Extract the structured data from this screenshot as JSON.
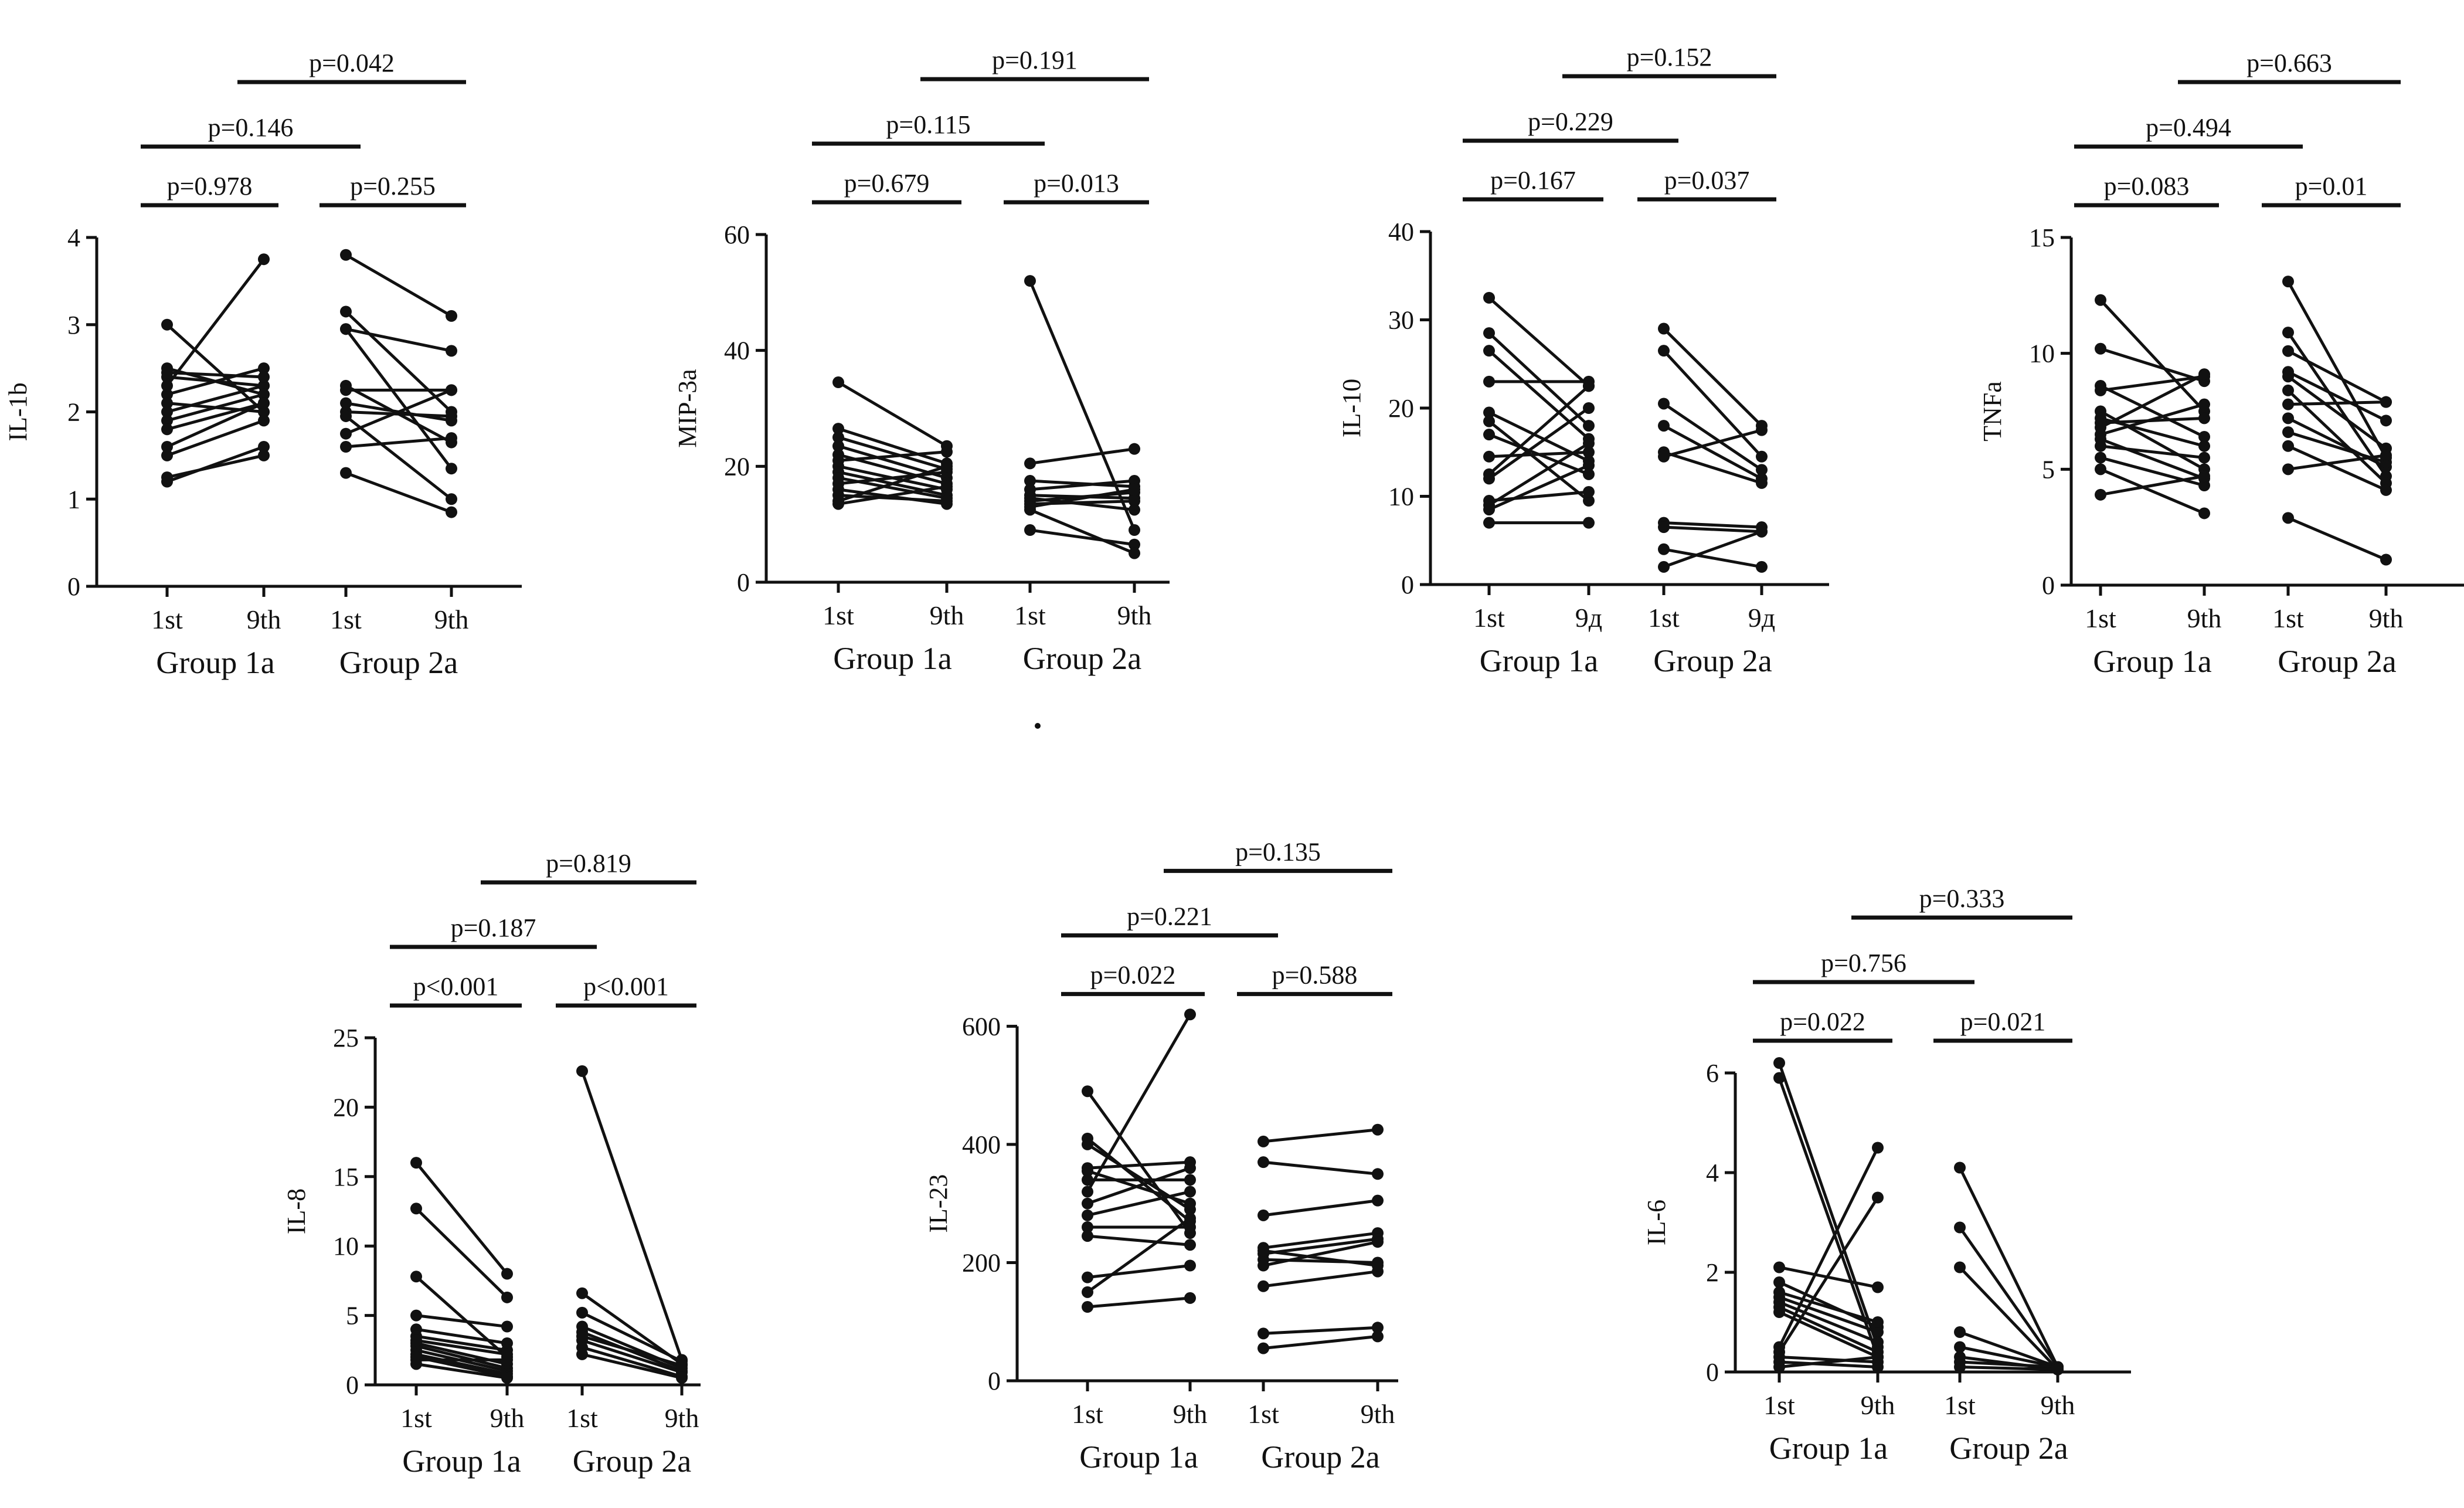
{
  "chart_data": [
    {
      "type": "line",
      "ylabel": "IL-1b",
      "ylim": [
        0,
        4
      ],
      "yticks": [
        0,
        1,
        2,
        3,
        4
      ],
      "categories": [
        "1st",
        "9th",
        "1st",
        "9th"
      ],
      "groups": [
        "Group 1a",
        "Group 2a"
      ],
      "comparisons": [
        {
          "label": "p=0.978",
          "from": 0,
          "to": 1,
          "level": 0
        },
        {
          "label": "p=0.255",
          "from": 2,
          "to": 3,
          "level": 0
        },
        {
          "label": "p=0.146",
          "from": 0,
          "to": 2,
          "level": 1
        },
        {
          "label": "p=0.042",
          "from": 1,
          "to": 3,
          "level": 2
        }
      ],
      "series": [
        {
          "group": 0,
          "pairs": [
            [
              3.0,
              2.0
            ],
            [
              2.5,
              2.2
            ],
            [
              2.4,
              2.3
            ],
            [
              2.2,
              2.5
            ],
            [
              2.1,
              2.0
            ],
            [
              2.0,
              2.3
            ],
            [
              1.9,
              2.2
            ],
            [
              1.6,
              2.1
            ],
            [
              1.5,
              1.9
            ],
            [
              1.2,
              1.6
            ],
            [
              1.25,
              1.5
            ],
            [
              2.3,
              3.75
            ],
            [
              2.45,
              2.4
            ],
            [
              1.8,
              2.1
            ]
          ]
        },
        {
          "group": 1,
          "pairs": [
            [
              3.8,
              3.1
            ],
            [
              3.15,
              2.0
            ],
            [
              2.95,
              1.35
            ],
            [
              2.95,
              2.7
            ],
            [
              2.3,
              1.65
            ],
            [
              2.25,
              2.25
            ],
            [
              2.0,
              1.95
            ],
            [
              1.95,
              1.0
            ],
            [
              1.75,
              2.25
            ],
            [
              1.6,
              1.7
            ],
            [
              1.3,
              0.85
            ],
            [
              2.1,
              1.9
            ]
          ]
        }
      ]
    },
    {
      "type": "line",
      "ylabel": "MIP-3a",
      "ylim": [
        0,
        60
      ],
      "yticks": [
        0,
        20,
        40,
        60
      ],
      "categories": [
        "1st",
        "9th",
        "1st",
        "9th"
      ],
      "groups": [
        "Group 1a",
        "Group 2a"
      ],
      "comparisons": [
        {
          "label": "p=0.679",
          "from": 0,
          "to": 1,
          "level": 0
        },
        {
          "label": "p=0.013",
          "from": 2,
          "to": 3,
          "level": 0
        },
        {
          "label": "p=0.115",
          "from": 0,
          "to": 2,
          "level": 1
        },
        {
          "label": "p=0.191",
          "from": 1,
          "to": 3,
          "level": 2
        }
      ],
      "series": [
        {
          "group": 0,
          "pairs": [
            [
              34.5,
              23.5
            ],
            [
              26.5,
              20.5
            ],
            [
              25.0,
              19.5
            ],
            [
              23.5,
              18.0
            ],
            [
              22.0,
              17.0
            ],
            [
              21.0,
              22.5
            ],
            [
              20.0,
              16.0
            ],
            [
              19.0,
              15.0
            ],
            [
              18.0,
              14.5
            ],
            [
              17.0,
              19.0
            ],
            [
              16.0,
              13.5
            ],
            [
              15.0,
              14.0
            ],
            [
              14.0,
              20.0
            ],
            [
              13.5,
              16.5
            ]
          ]
        },
        {
          "group": 1,
          "pairs": [
            [
              52.0,
              9.0
            ],
            [
              20.5,
              23.0
            ],
            [
              17.5,
              16.5
            ],
            [
              16.0,
              17.5
            ],
            [
              15.0,
              14.5
            ],
            [
              14.5,
              12.5
            ],
            [
              14.0,
              15.5
            ],
            [
              13.5,
              14.0
            ],
            [
              13.0,
              16.0
            ],
            [
              9.0,
              6.5
            ],
            [
              12.5,
              5.0
            ]
          ]
        }
      ]
    },
    {
      "type": "line",
      "ylabel": "IL-10",
      "ylim": [
        0,
        40
      ],
      "yticks": [
        0,
        10,
        20,
        30,
        40
      ],
      "categories": [
        "1st",
        "9д",
        "1st",
        "9д"
      ],
      "groups": [
        "Group 1a",
        "Group 2a"
      ],
      "comparisons": [
        {
          "label": "p=0.167",
          "from": 0,
          "to": 1,
          "level": 0
        },
        {
          "label": "p=0.037",
          "from": 2,
          "to": 3,
          "level": 0
        },
        {
          "label": "p=0.229",
          "from": 0,
          "to": 2,
          "level": 1
        },
        {
          "label": "p=0.152",
          "from": 1,
          "to": 3,
          "level": 2
        }
      ],
      "series": [
        {
          "group": 0,
          "pairs": [
            [
              32.5,
              22.5
            ],
            [
              28.5,
              18.0
            ],
            [
              26.5,
              16.5
            ],
            [
              23.0,
              23.0
            ],
            [
              19.5,
              14.0
            ],
            [
              18.5,
              9.5
            ],
            [
              17.0,
              12.5
            ],
            [
              14.5,
              15.0
            ],
            [
              12.5,
              22.5
            ],
            [
              12.0,
              20.0
            ],
            [
              9.5,
              10.5
            ],
            [
              9.0,
              16.0
            ],
            [
              8.5,
              13.5
            ],
            [
              7.0,
              7.0
            ]
          ]
        },
        {
          "group": 1,
          "pairs": [
            [
              29.0,
              18.0
            ],
            [
              26.5,
              14.5
            ],
            [
              20.5,
              13.0
            ],
            [
              18.0,
              12.0
            ],
            [
              15.0,
              11.5
            ],
            [
              14.5,
              17.5
            ],
            [
              7.0,
              6.5
            ],
            [
              6.5,
              6.0
            ],
            [
              4.0,
              2.0
            ],
            [
              2.0,
              6.0
            ]
          ]
        }
      ]
    },
    {
      "type": "line",
      "ylabel": "TNFa",
      "ylim": [
        0,
        15
      ],
      "yticks": [
        0,
        5,
        10,
        15
      ],
      "categories": [
        "1st",
        "9th",
        "1st",
        "9th"
      ],
      "groups": [
        "Group 1a",
        "Group 2a"
      ],
      "comparisons": [
        {
          "label": "p=0.083",
          "from": 0,
          "to": 1,
          "level": 0
        },
        {
          "label": "p=0.01",
          "from": 2,
          "to": 3,
          "level": 0
        },
        {
          "label": "p=0.494",
          "from": 0,
          "to": 2,
          "level": 1
        },
        {
          "label": "p=0.663",
          "from": 1,
          "to": 3,
          "level": 2
        }
      ],
      "series": [
        {
          "group": 0,
          "pairs": [
            [
              12.3,
              7.5
            ],
            [
              10.2,
              8.8
            ],
            [
              8.6,
              6.4
            ],
            [
              8.4,
              9.0
            ],
            [
              7.5,
              5.0
            ],
            [
              7.0,
              7.2
            ],
            [
              6.8,
              9.1
            ],
            [
              6.5,
              7.8
            ],
            [
              6.3,
              4.6
            ],
            [
              6.0,
              5.5
            ],
            [
              5.5,
              4.3
            ],
            [
              5.0,
              3.1
            ],
            [
              3.9,
              4.7
            ],
            [
              7.2,
              6.0
            ]
          ]
        },
        {
          "group": 1,
          "pairs": [
            [
              13.1,
              5.5
            ],
            [
              10.9,
              4.7
            ],
            [
              10.1,
              7.9
            ],
            [
              9.2,
              7.1
            ],
            [
              9.0,
              5.9
            ],
            [
              8.4,
              4.4
            ],
            [
              7.8,
              7.9
            ],
            [
              7.2,
              5.1
            ],
            [
              6.6,
              5.3
            ],
            [
              6.0,
              4.1
            ],
            [
              5.0,
              5.6
            ],
            [
              2.9,
              1.1
            ]
          ]
        }
      ]
    },
    {
      "type": "line",
      "ylabel": "IL-8",
      "ylim": [
        0,
        25
      ],
      "yticks": [
        0,
        5,
        10,
        15,
        20,
        25
      ],
      "categories": [
        "1st",
        "9th",
        "1st",
        "9th"
      ],
      "groups": [
        "Group 1a",
        "Group 2a"
      ],
      "comparisons": [
        {
          "label": "p<0.001",
          "from": 0,
          "to": 1,
          "level": 0
        },
        {
          "label": "p<0.001",
          "from": 2,
          "to": 3,
          "level": 0
        },
        {
          "label": "p=0.187",
          "from": 0,
          "to": 2,
          "level": 1
        },
        {
          "label": "p=0.819",
          "from": 1,
          "to": 3,
          "level": 2
        }
      ],
      "series": [
        {
          "group": 0,
          "pairs": [
            [
              16.0,
              8.0
            ],
            [
              12.7,
              6.3
            ],
            [
              7.8,
              2.0
            ],
            [
              5.0,
              4.2
            ],
            [
              4.0,
              3.0
            ],
            [
              3.5,
              2.5
            ],
            [
              3.0,
              1.5
            ],
            [
              2.8,
              1.2
            ],
            [
              2.5,
              1.0
            ],
            [
              2.2,
              0.8
            ],
            [
              2.0,
              0.6
            ],
            [
              1.8,
              1.8
            ],
            [
              1.5,
              0.5
            ],
            [
              3.2,
              2.2
            ]
          ]
        },
        {
          "group": 1,
          "pairs": [
            [
              22.6,
              1.8
            ],
            [
              6.6,
              1.5
            ],
            [
              5.2,
              1.7
            ],
            [
              4.2,
              1.2
            ],
            [
              3.8,
              1.0
            ],
            [
              3.2,
              0.9
            ],
            [
              2.7,
              0.6
            ],
            [
              2.2,
              0.5
            ],
            [
              3.5,
              1.4
            ]
          ]
        }
      ]
    },
    {
      "type": "line",
      "ylabel": "IL-23",
      "ylim": [
        0,
        650
      ],
      "yticks": [
        0,
        200,
        400,
        600
      ],
      "categories": [
        "1st",
        "9th",
        "1st",
        "9th"
      ],
      "groups": [
        "Group 1a",
        "Group 2a"
      ],
      "comparisons": [
        {
          "label": "p=0.022",
          "from": 0,
          "to": 1,
          "level": 0
        },
        {
          "label": "p=0.588",
          "from": 2,
          "to": 3,
          "level": 0
        },
        {
          "label": "p=0.221",
          "from": 0,
          "to": 2,
          "level": 1
        },
        {
          "label": "p=0.135",
          "from": 1,
          "to": 3,
          "level": 2
        }
      ],
      "series": [
        {
          "group": 0,
          "pairs": [
            [
              490,
              250
            ],
            [
              410,
              270
            ],
            [
              400,
              290
            ],
            [
              360,
              370
            ],
            [
              355,
              300
            ],
            [
              340,
              340
            ],
            [
              300,
              360
            ],
            [
              280,
              320
            ],
            [
              260,
              260
            ],
            [
              245,
              230
            ],
            [
              175,
              195
            ],
            [
              150,
              275
            ],
            [
              125,
              140
            ],
            [
              320,
              620
            ]
          ]
        },
        {
          "group": 1,
          "pairs": [
            [
              405,
              425
            ],
            [
              370,
              350
            ],
            [
              280,
              305
            ],
            [
              225,
              250
            ],
            [
              215,
              240
            ],
            [
              205,
              200
            ],
            [
              195,
              235
            ],
            [
              160,
              185
            ],
            [
              80,
              90
            ],
            [
              55,
              75
            ],
            [
              220,
              195
            ]
          ]
        }
      ]
    },
    {
      "type": "line",
      "ylabel": "IL-6",
      "ylim": [
        0,
        7
      ],
      "yticks": [
        0,
        2,
        4,
        6
      ],
      "categories": [
        "1st",
        "9th",
        "1st",
        "9th"
      ],
      "groups": [
        "Group 1a",
        "Group 2a"
      ],
      "comparisons": [
        {
          "label": "p=0.022",
          "from": 0,
          "to": 1,
          "level": 0
        },
        {
          "label": "p=0.021",
          "from": 2,
          "to": 3,
          "level": 0
        },
        {
          "label": "p=0.756",
          "from": 0,
          "to": 2,
          "level": 1
        },
        {
          "label": "p=0.333",
          "from": 1,
          "to": 3,
          "level": 2
        }
      ],
      "series": [
        {
          "group": 0,
          "pairs": [
            [
              6.2,
              0.5
            ],
            [
              5.9,
              0.3
            ],
            [
              2.1,
              1.7
            ],
            [
              1.8,
              0.9
            ],
            [
              1.5,
              0.8
            ],
            [
              1.4,
              0.6
            ],
            [
              1.3,
              0.4
            ],
            [
              1.2,
              0.3
            ],
            [
              0.5,
              4.5
            ],
            [
              0.4,
              3.5
            ],
            [
              0.3,
              0.2
            ],
            [
              0.2,
              0.1
            ],
            [
              0.1,
              0.3
            ],
            [
              1.6,
              1.0
            ]
          ]
        },
        {
          "group": 1,
          "pairs": [
            [
              4.1,
              0.1
            ],
            [
              2.9,
              0.1
            ],
            [
              2.1,
              0.05
            ],
            [
              0.8,
              0.1
            ],
            [
              0.5,
              0.1
            ],
            [
              0.3,
              0.05
            ],
            [
              0.2,
              0.1
            ],
            [
              0.1,
              0.05
            ]
          ]
        }
      ]
    }
  ]
}
